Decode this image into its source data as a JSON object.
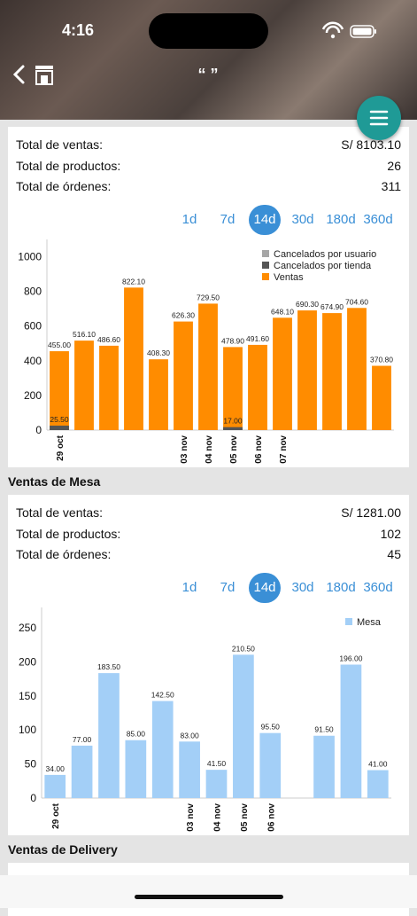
{
  "status_bar": {
    "time": "4:16"
  },
  "header": {
    "title": "“ ”"
  },
  "sections": [
    {
      "summary": [
        {
          "label": "Total de ventas:",
          "value": "S/ 8103.10"
        },
        {
          "label": "Total de productos:",
          "value": 26
        },
        {
          "label": "Total de órdenes:",
          "value": 311
        }
      ],
      "ranges": [
        "1d",
        "7d",
        "14d",
        "30d",
        "180d",
        "360d"
      ],
      "selected_range": "14d"
    },
    {
      "title": "Ventas de Mesa",
      "summary": [
        {
          "label": "Total de ventas:",
          "value": "S/ 1281.00"
        },
        {
          "label": "Total de productos:",
          "value": 102
        },
        {
          "label": "Total de órdenes:",
          "value": 45
        }
      ],
      "ranges": [
        "1d",
        "7d",
        "14d",
        "30d",
        "180d",
        "360d"
      ],
      "selected_range": "14d"
    },
    {
      "title": "Ventas de Delivery"
    }
  ],
  "chart_data": [
    {
      "type": "bar",
      "categories": [
        "29 oct",
        null,
        null,
        null,
        null,
        "03 nov",
        "04 nov",
        "05 nov",
        "06 nov",
        "07 nov",
        null,
        null,
        null,
        null
      ],
      "series": [
        {
          "name": "Cancelados por usuario",
          "color": "#a6a6a6",
          "values": [
            0,
            0,
            0,
            0,
            0,
            0,
            0,
            0,
            0,
            0,
            0,
            0,
            0,
            0
          ]
        },
        {
          "name": "Cancelados por tienda",
          "color": "#555555",
          "values": [
            25.5,
            0,
            0,
            0,
            0,
            0,
            0,
            17,
            0,
            0,
            0,
            0,
            0,
            0
          ],
          "value_labels": [
            "25.50",
            null,
            null,
            null,
            null,
            null,
            null,
            "17.00",
            null,
            null,
            null,
            null,
            null,
            null
          ]
        },
        {
          "name": "Ventas",
          "color": "#ff8c00",
          "values": [
            455,
            516.1,
            486.6,
            822.1,
            408.3,
            626.3,
            729.5,
            478.9,
            491.6,
            648.1,
            690.3,
            674.9,
            704.6,
            370.8
          ],
          "value_labels": [
            "455.00",
            "516.10",
            "486.60",
            "822.10",
            "408.30",
            "626.30",
            "729.50",
            "478.90",
            "491.60",
            "648.10",
            "690.30",
            "674.90",
            "704.60",
            "370.80"
          ]
        }
      ],
      "ylim": [
        0,
        1100
      ],
      "yticks": [
        0,
        200,
        400,
        600,
        800,
        1000
      ],
      "legend": "top-right"
    },
    {
      "type": "bar",
      "categories": [
        "29 oct",
        null,
        null,
        null,
        null,
        "03 nov",
        "04 nov",
        "05 nov",
        "06 nov",
        null,
        null,
        null,
        null
      ],
      "series": [
        {
          "name": "Mesa",
          "color": "#a3cff7",
          "values": [
            34,
            77,
            183.5,
            85,
            142.5,
            83,
            41.5,
            210.5,
            95.5,
            null,
            91.5,
            196,
            41
          ],
          "value_labels": [
            "34.00",
            "77.00",
            "183.50",
            "85.00",
            "142.50",
            "83.00",
            "41.50",
            "210.50",
            "95.50",
            null,
            "91.50",
            "196.00",
            "41.00"
          ]
        }
      ],
      "ylim": [
        0,
        280
      ],
      "yticks": [
        0,
        50,
        100,
        150,
        200,
        250
      ],
      "legend": "top-right"
    }
  ]
}
